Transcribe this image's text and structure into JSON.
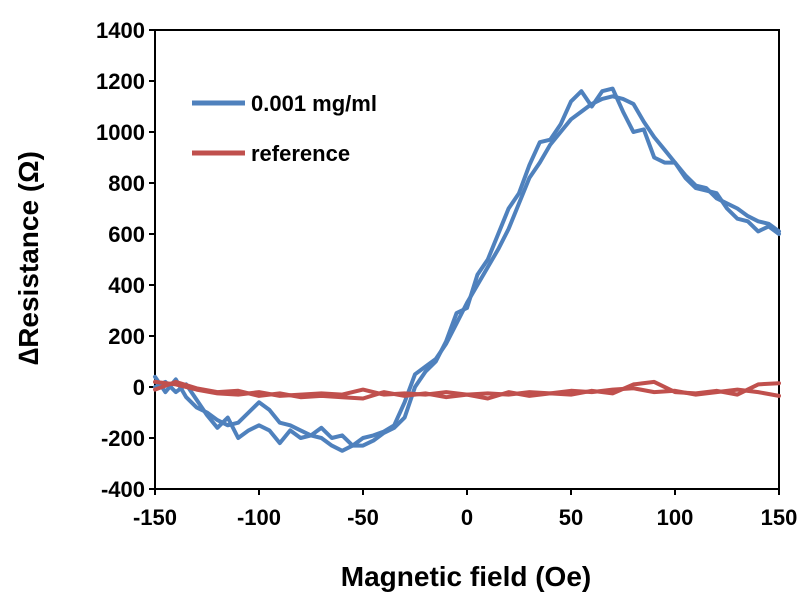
{
  "chart_data": {
    "type": "line",
    "title": "",
    "xlabel": "Magnetic field (Oe)",
    "ylabel": "∆Resistance (Ω)",
    "xlim": [
      -150,
      150
    ],
    "ylim": [
      -400,
      1400
    ],
    "xticks": [
      -150,
      -100,
      -50,
      0,
      50,
      100,
      150
    ],
    "yticks": [
      -400,
      -200,
      0,
      200,
      400,
      600,
      800,
      1000,
      1200,
      1400
    ],
    "grid": false,
    "legend_position": "top-left",
    "series": [
      {
        "name": "0.001 mg/ml",
        "color": "#4F81BD",
        "sweeps": [
          {
            "x": [
              -150,
              -145,
              -140,
              -135,
              -130,
              -125,
              -120,
              -115,
              -110,
              -105,
              -100,
              -95,
              -90,
              -85,
              -80,
              -75,
              -70,
              -65,
              -60,
              -55,
              -50,
              -45,
              -40,
              -35,
              -30,
              -25,
              -20,
              -15,
              -10,
              -5,
              0,
              5,
              10,
              15,
              20,
              25,
              30,
              35,
              40,
              45,
              50,
              55,
              60,
              65,
              70,
              75,
              80,
              85,
              90,
              95,
              100,
              105,
              110,
              115,
              120,
              125,
              130,
              135,
              140,
              145,
              150
            ],
            "y": [
              40,
              -20,
              30,
              -40,
              -80,
              -100,
              -130,
              -150,
              -140,
              -100,
              -60,
              -90,
              -140,
              -150,
              -170,
              -190,
              -200,
              -230,
              -250,
              -230,
              -200,
              -190,
              -175,
              -150,
              -60,
              50,
              80,
              110,
              170,
              250,
              330,
              400,
              470,
              540,
              620,
              720,
              820,
              880,
              950,
              1000,
              1050,
              1080,
              1110,
              1130,
              1140,
              1130,
              1110,
              1040,
              980,
              930,
              880,
              830,
              790,
              780,
              740,
              720,
              700,
              670,
              650,
              640,
              610
            ]
          },
          {
            "x": [
              -150,
              -145,
              -140,
              -135,
              -130,
              -125,
              -120,
              -115,
              -110,
              -105,
              -100,
              -95,
              -90,
              -85,
              -80,
              -75,
              -70,
              -65,
              -60,
              -55,
              -50,
              -45,
              -40,
              -35,
              -30,
              -25,
              -20,
              -15,
              -10,
              -5,
              0,
              5,
              10,
              15,
              20,
              25,
              30,
              35,
              40,
              45,
              50,
              55,
              60,
              65,
              70,
              75,
              80,
              85,
              90,
              95,
              100,
              105,
              110,
              115,
              120,
              125,
              130,
              135,
              140,
              145,
              150
            ],
            "y": [
              0,
              20,
              -20,
              10,
              -50,
              -110,
              -160,
              -120,
              -200,
              -170,
              -150,
              -170,
              -220,
              -170,
              -200,
              -190,
              -160,
              -200,
              -190,
              -230,
              -230,
              -210,
              -180,
              -160,
              -120,
              0,
              60,
              100,
              180,
              290,
              310,
              440,
              500,
              600,
              700,
              760,
              870,
              960,
              970,
              1030,
              1120,
              1160,
              1100,
              1160,
              1170,
              1080,
              1000,
              1010,
              900,
              880,
              880,
              820,
              780,
              770,
              760,
              700,
              660,
              650,
              610,
              630,
              600
            ]
          }
        ]
      },
      {
        "name": "reference",
        "color": "#C0504D",
        "sweeps": [
          {
            "x": [
              -150,
              -140,
              -130,
              -120,
              -110,
              -100,
              -90,
              -80,
              -70,
              -60,
              -50,
              -40,
              -30,
              -20,
              -10,
              0,
              10,
              20,
              30,
              40,
              50,
              60,
              70,
              80,
              90,
              100,
              110,
              120,
              130,
              140,
              150
            ],
            "y": [
              20,
              10,
              -10,
              -25,
              -30,
              -20,
              -35,
              -30,
              -25,
              -30,
              -10,
              -30,
              -25,
              -30,
              -20,
              -30,
              -25,
              -30,
              -20,
              -25,
              -15,
              -20,
              -10,
              -5,
              -20,
              -15,
              -30,
              -20,
              -10,
              -20,
              -35
            ]
          },
          {
            "x": [
              -150,
              -140,
              -130,
              -120,
              -110,
              -100,
              -90,
              -80,
              -70,
              -60,
              -50,
              -40,
              -30,
              -20,
              -10,
              0,
              10,
              20,
              30,
              40,
              50,
              60,
              70,
              80,
              90,
              100,
              110,
              120,
              130,
              140,
              150
            ],
            "y": [
              -10,
              20,
              -5,
              -20,
              -15,
              -35,
              -25,
              -40,
              -35,
              -40,
              -45,
              -20,
              -35,
              -25,
              -40,
              -30,
              -45,
              -20,
              -35,
              -25,
              -30,
              -15,
              -25,
              10,
              20,
              -20,
              -25,
              -15,
              -30,
              10,
              15
            ]
          }
        ]
      }
    ]
  }
}
